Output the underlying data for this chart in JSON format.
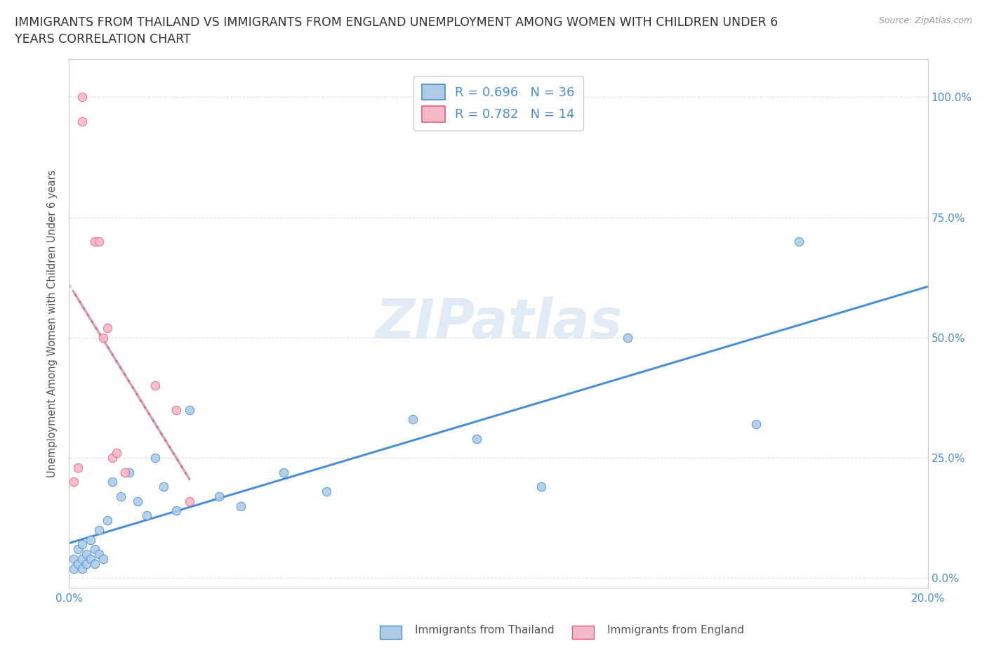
{
  "title": "IMMIGRANTS FROM THAILAND VS IMMIGRANTS FROM ENGLAND UNEMPLOYMENT AMONG WOMEN WITH CHILDREN UNDER 6\nYEARS CORRELATION CHART",
  "source": "Source: ZipAtlas.com",
  "ylabel": "Unemployment Among Women with Children Under 6 years",
  "xlim": [
    0.0,
    0.2
  ],
  "ylim": [
    -0.02,
    1.08
  ],
  "xticks": [
    0.0,
    0.02,
    0.04,
    0.06,
    0.08,
    0.1,
    0.12,
    0.14,
    0.16,
    0.18,
    0.2
  ],
  "ytick_vals": [
    0.0,
    0.25,
    0.5,
    0.75,
    1.0
  ],
  "ytick_labels": [
    "0.0%",
    "25.0%",
    "50.0%",
    "75.0%",
    "100.0%"
  ],
  "xtick_labels": [
    "0.0%",
    "",
    "",
    "",
    "",
    "",
    "",
    "",
    "",
    "",
    "20.0%"
  ],
  "thailand_color": "#aecce8",
  "england_color": "#f5b8c8",
  "thailand_line_color": "#4a8fd4",
  "england_line_color": "#e8607a",
  "thailand_R": 0.696,
  "thailand_N": 36,
  "england_R": 0.782,
  "england_N": 14,
  "grid_color": "#e0e0e0",
  "background_color": "#ffffff",
  "title_color": "#333333",
  "label_color": "#555555",
  "tick_color": "#4a8fd4",
  "source_color": "#999999",
  "thailand_scatter_x": [
    0.001,
    0.001,
    0.002,
    0.002,
    0.003,
    0.003,
    0.003,
    0.004,
    0.004,
    0.005,
    0.005,
    0.006,
    0.006,
    0.007,
    0.007,
    0.008,
    0.009,
    0.01,
    0.012,
    0.014,
    0.016,
    0.018,
    0.02,
    0.022,
    0.025,
    0.028,
    0.035,
    0.04,
    0.05,
    0.06,
    0.08,
    0.095,
    0.11,
    0.13,
    0.16,
    0.17
  ],
  "thailand_scatter_y": [
    0.02,
    0.04,
    0.03,
    0.06,
    0.02,
    0.04,
    0.07,
    0.03,
    0.05,
    0.04,
    0.08,
    0.03,
    0.06,
    0.05,
    0.1,
    0.04,
    0.12,
    0.2,
    0.17,
    0.22,
    0.16,
    0.13,
    0.25,
    0.19,
    0.14,
    0.35,
    0.17,
    0.15,
    0.22,
    0.18,
    0.33,
    0.29,
    0.19,
    0.5,
    0.32,
    0.7
  ],
  "england_scatter_x": [
    0.001,
    0.002,
    0.003,
    0.003,
    0.006,
    0.007,
    0.008,
    0.009,
    0.01,
    0.011,
    0.013,
    0.02,
    0.025,
    0.028
  ],
  "england_scatter_y": [
    0.2,
    0.23,
    0.95,
    1.0,
    0.7,
    0.7,
    0.5,
    0.52,
    0.25,
    0.26,
    0.22,
    0.4,
    0.35,
    0.16
  ],
  "grid_linestyle": "--",
  "grid_linewidth": 0.8
}
